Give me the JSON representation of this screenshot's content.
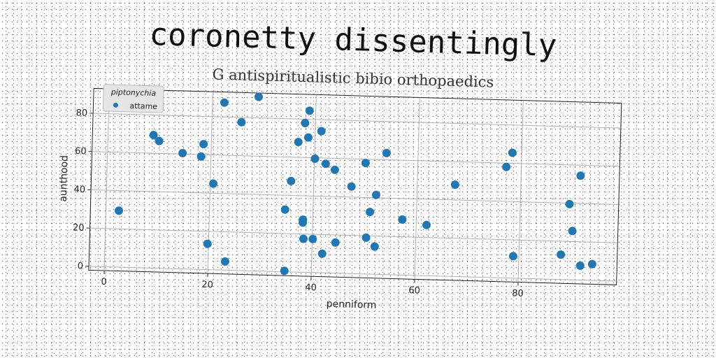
{
  "chart_data": {
    "type": "scatter",
    "title": "coronetty dissentingly",
    "subtitle": "G antispiritualistic bibio orthopaedics",
    "xlabel": "penniform",
    "ylabel": "aunthood",
    "xlim": [
      -3,
      99
    ],
    "ylim": [
      -2,
      93
    ],
    "xticks": [
      0,
      20,
      40,
      60,
      80
    ],
    "yticks": [
      0,
      20,
      40,
      60,
      80
    ],
    "grid": true,
    "legend": {
      "title": "piptonychia",
      "placement": "top-left"
    },
    "series": [
      {
        "name": "attame",
        "color": "#1f77b4",
        "points": [
          [
            2.5,
            29.5
          ],
          [
            8.8,
            69.5
          ],
          [
            9.9,
            66.5
          ],
          [
            14.5,
            60.5
          ],
          [
            18.1,
            59
          ],
          [
            18.5,
            65.5
          ],
          [
            19.8,
            13.5
          ],
          [
            20.6,
            45
          ],
          [
            22.3,
            87.5
          ],
          [
            23.3,
            4.5
          ],
          [
            25.7,
            77.5
          ],
          [
            28.9,
            91
          ],
          [
            34.6,
            32.5
          ],
          [
            34.8,
            0.5
          ],
          [
            35.6,
            47.5
          ],
          [
            36.8,
            68
          ],
          [
            38,
            78
          ],
          [
            38.1,
            27.5
          ],
          [
            38.1,
            26
          ],
          [
            38.3,
            17.5
          ],
          [
            38.7,
            70.5
          ],
          [
            38.8,
            84.5
          ],
          [
            40.1,
            17.5
          ],
          [
            40.1,
            59.5
          ],
          [
            41.2,
            74
          ],
          [
            42,
            10
          ],
          [
            42.2,
            57
          ],
          [
            44,
            54
          ],
          [
            44.5,
            16
          ],
          [
            47.3,
            45.5
          ],
          [
            49.9,
            58
          ],
          [
            50.4,
            19
          ],
          [
            51,
            32.5
          ],
          [
            52.1,
            14.5
          ],
          [
            52.1,
            41.5
          ],
          [
            53.9,
            63.5
          ],
          [
            57.3,
            29
          ],
          [
            62,
            26.5
          ],
          [
            67.3,
            48
          ],
          [
            77.1,
            58
          ],
          [
            78.2,
            65.5
          ],
          [
            78.9,
            11.5
          ],
          [
            88.1,
            13
          ],
          [
            89.5,
            39.5
          ],
          [
            90.2,
            25.5
          ],
          [
            91.5,
            54.5
          ],
          [
            91.9,
            7.5
          ],
          [
            94.2,
            8.5
          ]
        ]
      }
    ]
  }
}
